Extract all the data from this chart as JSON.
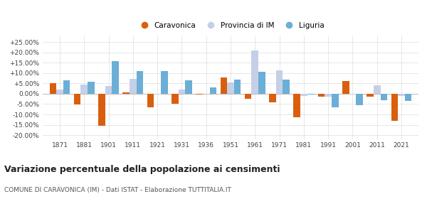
{
  "years": [
    1871,
    1881,
    1901,
    1911,
    1921,
    1931,
    1936,
    1951,
    1961,
    1971,
    1981,
    1991,
    2001,
    2011,
    2021
  ],
  "caravonica": [
    5.2,
    -5.3,
    -15.5,
    0.7,
    -6.5,
    -4.8,
    -0.3,
    8.0,
    -2.5,
    -4.0,
    -11.5,
    -1.5,
    6.2,
    -1.5,
    -13.0
  ],
  "provincia_im": [
    2.0,
    4.5,
    3.8,
    7.2,
    -0.5,
    2.2,
    0.0,
    5.5,
    21.0,
    11.2,
    -1.0,
    -1.5,
    -0.5,
    4.0,
    -1.0
  ],
  "liguria": [
    6.5,
    5.8,
    15.8,
    11.0,
    10.8,
    6.5,
    3.0,
    6.8,
    10.5,
    6.8,
    -0.5,
    -6.5,
    -5.5,
    -3.0,
    -3.5
  ],
  "caravonica_color": "#d95f0e",
  "provincia_color": "#c6cfe8",
  "liguria_color": "#6baed6",
  "title": "Variazione percentuale della popolazione ai censimenti",
  "subtitle": "COMUNE DI CARAVONICA (IM) - Dati ISTAT - Elaborazione TUTTITALIA.IT",
  "ylim": [
    -22,
    28
  ],
  "yticks": [
    -20,
    -15,
    -10,
    -5,
    0,
    5,
    10,
    15,
    20,
    25
  ],
  "ytick_labels": [
    "-20.00%",
    "-15.00%",
    "-10.00%",
    "-5.00%",
    "0.00%",
    "+5.00%",
    "+10.00%",
    "+15.00%",
    "+20.00%",
    "+25.00%"
  ],
  "bar_width": 0.28,
  "background_color": "#ffffff",
  "grid_color": "#dddddd"
}
